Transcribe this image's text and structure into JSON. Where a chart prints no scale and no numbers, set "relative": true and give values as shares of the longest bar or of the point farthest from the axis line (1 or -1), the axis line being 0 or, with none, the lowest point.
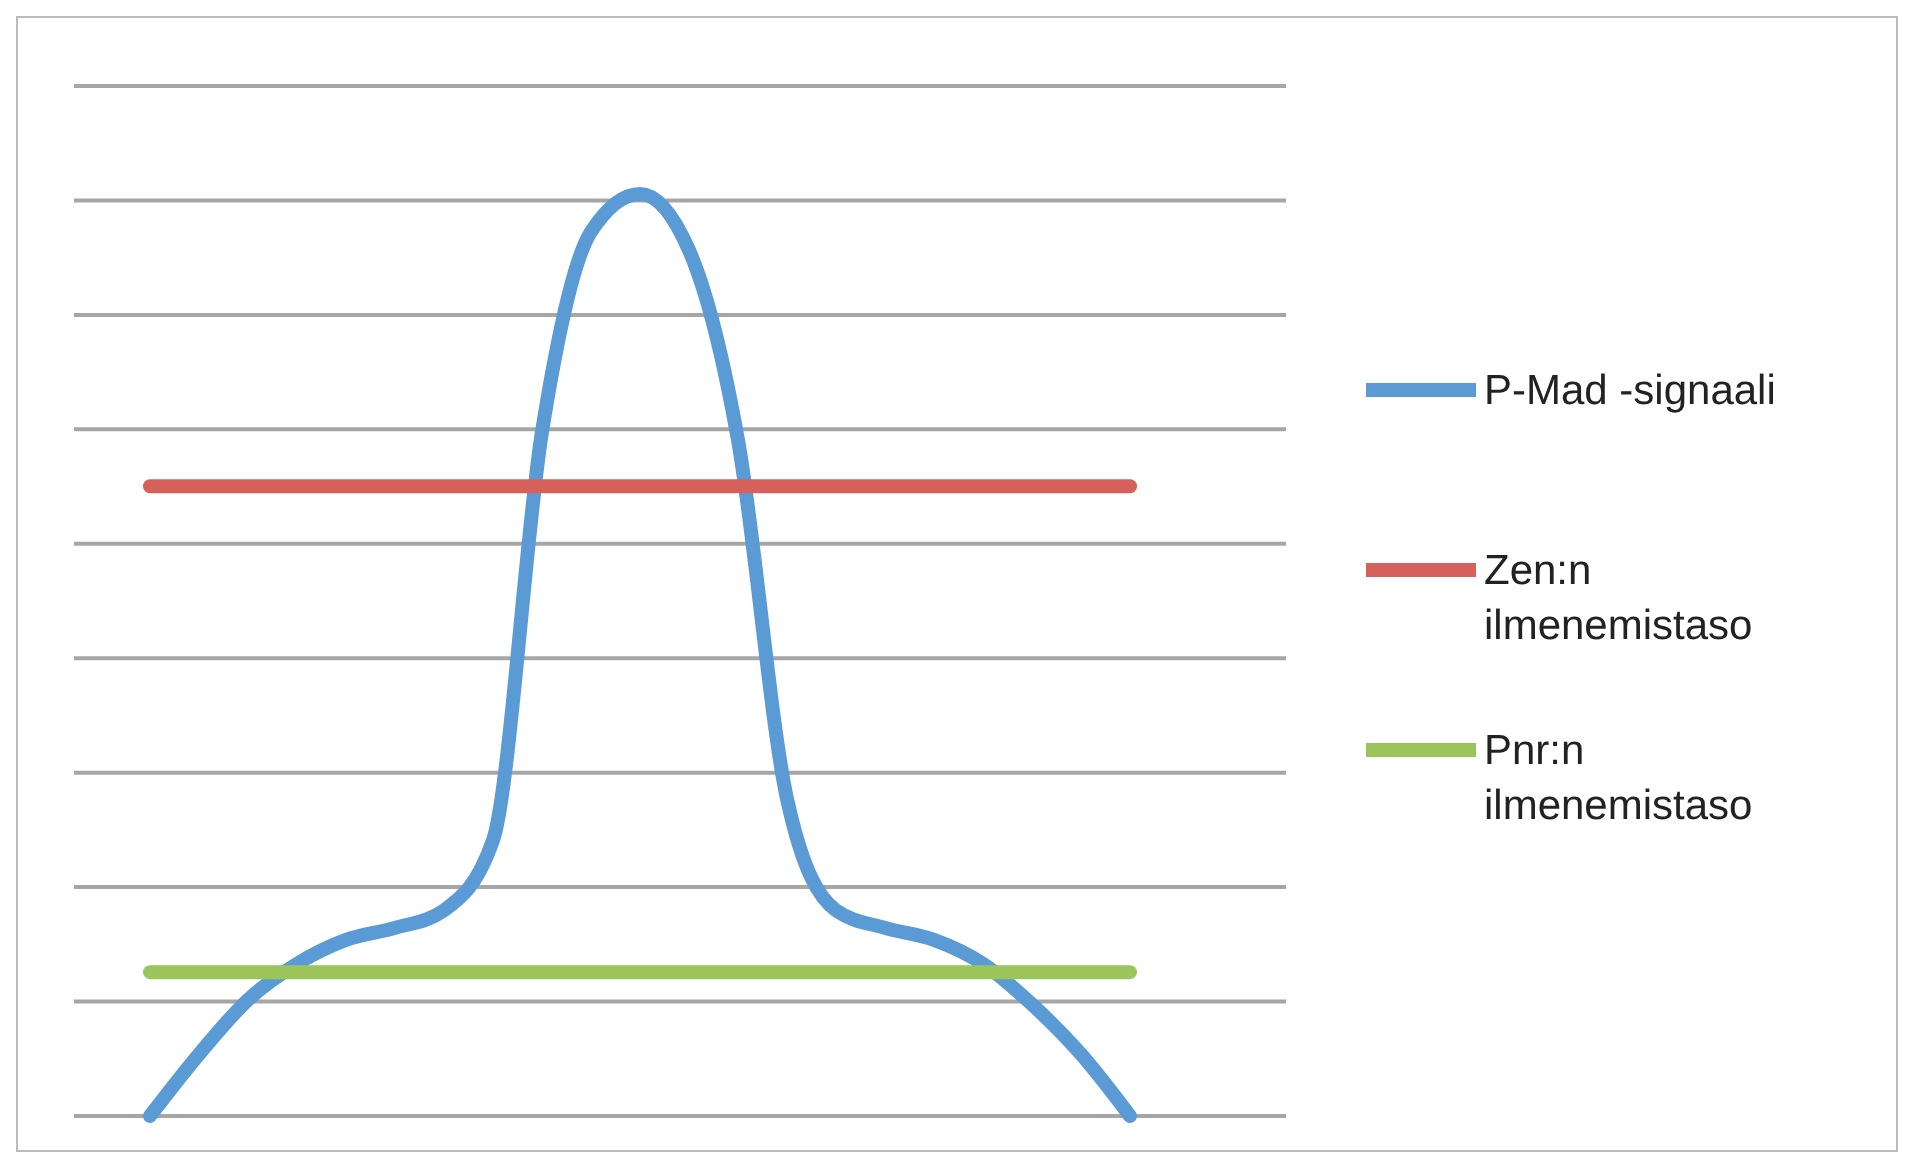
{
  "chart_data": {
    "type": "line",
    "relative": true,
    "grid": "y",
    "legend": "right",
    "categories": [
      null,
      null,
      null,
      null,
      null,
      null,
      null,
      null,
      null,
      null,
      null,
      null,
      null,
      null,
      null,
      null,
      null,
      null,
      null,
      null,
      null
    ],
    "series": [
      {
        "name": "P-Mad -signaali",
        "color": "#5b9bd5",
        "values": [
          0,
          0.067,
          0.126,
          0.165,
          0.191,
          0.204,
          0.223,
          0.299,
          0.742,
          0.959,
          1,
          0.939,
          0.733,
          0.344,
          0.223,
          0.204,
          0.191,
          0.165,
          0.121,
          0.067,
          0
        ]
      },
      {
        "name": "Zen:n ilmenemistaso",
        "color": "#d6605a",
        "values": [
          0.683,
          0.683,
          0.683,
          0.683,
          0.683,
          0.683,
          0.683,
          0.683,
          0.683,
          0.683,
          0.683,
          0.683,
          0.683,
          0.683,
          0.683,
          0.683,
          0.683,
          0.683,
          0.683,
          0.683,
          0.683
        ]
      },
      {
        "name": "Pnr:n ilmenemistaso",
        "color": "#9bc55a",
        "values": [
          0.156,
          0.156,
          0.156,
          0.156,
          0.156,
          0.156,
          0.156,
          0.156,
          0.156,
          0.156,
          0.156,
          0.156,
          0.156,
          0.156,
          0.156,
          0.156,
          0.156,
          0.156,
          0.156,
          0.156,
          0.156
        ]
      }
    ]
  }
}
